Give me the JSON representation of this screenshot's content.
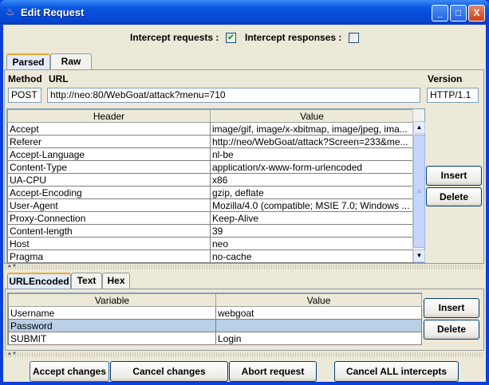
{
  "window": {
    "title": "Edit Request",
    "minimize": "_",
    "maximize": "□",
    "close": "X"
  },
  "intercept": {
    "requests_label": "Intercept requests :",
    "requests_checked": true,
    "responses_label": "Intercept responses :",
    "responses_checked": false,
    "check_glyph": "✔"
  },
  "top_tabs": [
    {
      "label": "Parsed",
      "selected": true
    },
    {
      "label": "Raw",
      "selected": false
    }
  ],
  "request": {
    "method_label": "Method",
    "url_label": "URL",
    "version_label": "Version",
    "method": "POST",
    "url": "http://neo:80/WebGoat/attack?menu=710",
    "version": "HTTP/1.1"
  },
  "headers_table": {
    "columns": [
      "Header",
      "Value"
    ],
    "rows": [
      [
        "Accept",
        "image/gif, image/x-xbitmap, image/jpeg, ima..."
      ],
      [
        "Referer",
        "http://neo/WebGoat/attack?Screen=233&me..."
      ],
      [
        "Accept-Language",
        "nl-be"
      ],
      [
        "Content-Type",
        "application/x-www-form-urlencoded"
      ],
      [
        "UA-CPU",
        "x86"
      ],
      [
        "Accept-Encoding",
        "gzip, deflate"
      ],
      [
        "User-Agent",
        "Mozilla/4.0 (compatible; MSIE 7.0; Windows ..."
      ],
      [
        "Proxy-Connection",
        "Keep-Alive"
      ],
      [
        "Content-length",
        "39"
      ],
      [
        "Host",
        "neo"
      ],
      [
        "Pragma",
        "no-cache"
      ]
    ]
  },
  "header_buttons": {
    "insert": "Insert",
    "delete": "Delete"
  },
  "body_tabs": [
    {
      "label": "URLEncoded",
      "selected": true
    },
    {
      "label": "Text",
      "selected": false
    },
    {
      "label": "Hex",
      "selected": false
    }
  ],
  "vars_table": {
    "columns": [
      "Variable",
      "Value"
    ],
    "rows": [
      [
        "Username",
        "webgoat"
      ],
      [
        "Password",
        ""
      ],
      [
        "SUBMIT",
        "Login"
      ]
    ],
    "selected_row": 1
  },
  "var_buttons": {
    "insert": "Insert",
    "delete": "Delete"
  },
  "footer": {
    "accept": "Accept changes",
    "cancel": "Cancel changes",
    "abort": "Abort request",
    "cancel_all": "Cancel ALL intercepts"
  }
}
